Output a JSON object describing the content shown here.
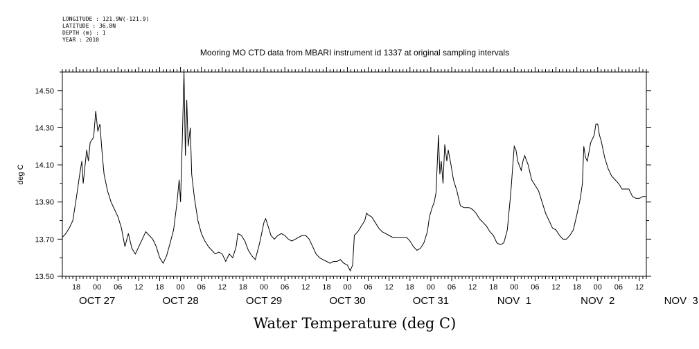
{
  "metadata": {
    "longitude": "LONGITUDE : 121.9W(-121.9)",
    "latitude": "LATITUDE : 36.8N",
    "depth": "DEPTH (m) : 1",
    "year": "YEAR : 2010"
  },
  "bottom_label": "Water Temperature (deg C)",
  "chart_data": {
    "type": "line",
    "title": "Mooring MO CTD data from MBARI instrument id 1337 at original sampling intervals",
    "xlabel": "",
    "ylabel": "deg C",
    "ylim": [
      13.5,
      14.6
    ],
    "xlim_hours": [
      14,
      182
    ],
    "grid": false,
    "y_ticks": [
      "13.50",
      "13.70",
      "13.90",
      "14.10",
      "14.30",
      "14.50"
    ],
    "x_hour_ticks": [
      "18",
      "00",
      "06",
      "12",
      "18",
      "00",
      "06",
      "12",
      "18",
      "00",
      "06",
      "12",
      "18",
      "00",
      "06",
      "12",
      "18",
      "00",
      "06",
      "12",
      "18",
      "00",
      "06",
      "12",
      "18",
      "00",
      "06",
      "12"
    ],
    "day_labels": [
      "OCT 27",
      "OCT 28",
      "OCT 29",
      "OCT 30",
      "OCT 31",
      "NOV  1",
      "NOV  2",
      "NOV  3"
    ],
    "series": [
      {
        "values": [
          [
            14.0,
            13.71
          ],
          [
            15.0,
            13.73
          ],
          [
            16.0,
            13.76
          ],
          [
            17.0,
            13.8
          ],
          [
            18.0,
            13.92
          ],
          [
            19.0,
            14.05
          ],
          [
            19.6,
            14.12
          ],
          [
            20.0,
            14.0
          ],
          [
            21.0,
            14.18
          ],
          [
            21.5,
            14.12
          ],
          [
            22.0,
            14.22
          ],
          [
            23.0,
            14.25
          ],
          [
            23.6,
            14.39
          ],
          [
            24.2,
            14.28
          ],
          [
            24.8,
            14.32
          ],
          [
            25.5,
            14.15
          ],
          [
            26.0,
            14.05
          ],
          [
            27.0,
            13.96
          ],
          [
            28.0,
            13.9
          ],
          [
            29.0,
            13.86
          ],
          [
            30.0,
            13.82
          ],
          [
            31.0,
            13.76
          ],
          [
            32.0,
            13.66
          ],
          [
            33.0,
            13.73
          ],
          [
            34.0,
            13.65
          ],
          [
            35.0,
            13.62
          ],
          [
            36.0,
            13.66
          ],
          [
            37.0,
            13.7
          ],
          [
            38.0,
            13.74
          ],
          [
            39.0,
            13.72
          ],
          [
            40.0,
            13.7
          ],
          [
            41.0,
            13.66
          ],
          [
            42.0,
            13.6
          ],
          [
            43.0,
            13.57
          ],
          [
            44.0,
            13.61
          ],
          [
            45.0,
            13.68
          ],
          [
            46.0,
            13.75
          ],
          [
            47.0,
            13.9
          ],
          [
            47.6,
            14.02
          ],
          [
            48.0,
            13.9
          ],
          [
            48.6,
            14.3
          ],
          [
            49.0,
            14.6
          ],
          [
            49.4,
            14.15
          ],
          [
            49.8,
            14.45
          ],
          [
            50.2,
            14.2
          ],
          [
            50.8,
            14.3
          ],
          [
            51.2,
            14.05
          ],
          [
            52.0,
            13.92
          ],
          [
            53.0,
            13.8
          ],
          [
            54.0,
            13.73
          ],
          [
            55.0,
            13.69
          ],
          [
            56.0,
            13.66
          ],
          [
            57.0,
            13.64
          ],
          [
            58.0,
            13.62
          ],
          [
            59.0,
            13.63
          ],
          [
            60.0,
            13.62
          ],
          [
            61.0,
            13.58
          ],
          [
            62.0,
            13.62
          ],
          [
            63.0,
            13.6
          ],
          [
            64.0,
            13.66
          ],
          [
            64.5,
            13.73
          ],
          [
            65.5,
            13.72
          ],
          [
            66.5,
            13.69
          ],
          [
            67.5,
            13.64
          ],
          [
            68.5,
            13.61
          ],
          [
            69.5,
            13.59
          ],
          [
            70.5,
            13.66
          ],
          [
            71.0,
            13.7
          ],
          [
            72.0,
            13.79
          ],
          [
            72.5,
            13.81
          ],
          [
            73.0,
            13.78
          ],
          [
            74.0,
            13.72
          ],
          [
            75.0,
            13.7
          ],
          [
            76.0,
            13.72
          ],
          [
            77.0,
            13.73
          ],
          [
            78.0,
            13.72
          ],
          [
            79.0,
            13.7
          ],
          [
            80.0,
            13.69
          ],
          [
            81.0,
            13.7
          ],
          [
            82.0,
            13.71
          ],
          [
            83.0,
            13.72
          ],
          [
            84.0,
            13.72
          ],
          [
            85.0,
            13.7
          ],
          [
            86.0,
            13.66
          ],
          [
            87.0,
            13.62
          ],
          [
            88.0,
            13.6
          ],
          [
            89.0,
            13.59
          ],
          [
            90.0,
            13.58
          ],
          [
            91.0,
            13.57
          ],
          [
            92.0,
            13.58
          ],
          [
            93.0,
            13.58
          ],
          [
            94.0,
            13.59
          ],
          [
            95.0,
            13.57
          ],
          [
            96.0,
            13.56
          ],
          [
            96.8,
            13.53
          ],
          [
            97.5,
            13.56
          ],
          [
            98.0,
            13.72
          ],
          [
            99.0,
            13.74
          ],
          [
            100.0,
            13.77
          ],
          [
            101.0,
            13.8
          ],
          [
            101.5,
            13.84
          ],
          [
            102.0,
            13.83
          ],
          [
            103.0,
            13.82
          ],
          [
            104.0,
            13.79
          ],
          [
            105.0,
            13.76
          ],
          [
            106.0,
            13.74
          ],
          [
            107.0,
            13.73
          ],
          [
            108.0,
            13.72
          ],
          [
            109.0,
            13.71
          ],
          [
            110.0,
            13.71
          ],
          [
            111.0,
            13.71
          ],
          [
            112.0,
            13.71
          ],
          [
            113.0,
            13.71
          ],
          [
            114.0,
            13.69
          ],
          [
            115.0,
            13.66
          ],
          [
            116.0,
            13.64
          ],
          [
            117.0,
            13.65
          ],
          [
            118.0,
            13.68
          ],
          [
            119.0,
            13.74
          ],
          [
            119.6,
            13.82
          ],
          [
            120.2,
            13.86
          ],
          [
            121.0,
            13.9
          ],
          [
            121.5,
            13.95
          ],
          [
            122.2,
            14.26
          ],
          [
            122.6,
            14.05
          ],
          [
            123.0,
            14.12
          ],
          [
            123.5,
            14.0
          ],
          [
            124.0,
            14.21
          ],
          [
            124.6,
            14.12
          ],
          [
            125.0,
            14.18
          ],
          [
            125.8,
            14.1
          ],
          [
            126.5,
            14.02
          ],
          [
            127.5,
            13.96
          ],
          [
            128.5,
            13.88
          ],
          [
            129.5,
            13.87
          ],
          [
            131.0,
            13.87
          ],
          [
            132.0,
            13.86
          ],
          [
            133.0,
            13.84
          ],
          [
            134.0,
            13.81
          ],
          [
            135.0,
            13.79
          ],
          [
            136.0,
            13.77
          ],
          [
            137.0,
            13.74
          ],
          [
            138.0,
            13.72
          ],
          [
            139.0,
            13.68
          ],
          [
            140.0,
            13.67
          ],
          [
            141.0,
            13.68
          ],
          [
            142.0,
            13.75
          ],
          [
            143.0,
            13.95
          ],
          [
            144.0,
            14.2
          ],
          [
            144.5,
            14.18
          ],
          [
            145.0,
            14.12
          ],
          [
            146.0,
            14.07
          ],
          [
            146.5,
            14.12
          ],
          [
            147.0,
            14.15
          ],
          [
            148.0,
            14.1
          ],
          [
            149.0,
            14.02
          ],
          [
            150.0,
            13.99
          ],
          [
            151.0,
            13.96
          ],
          [
            152.0,
            13.9
          ],
          [
            153.0,
            13.84
          ],
          [
            154.0,
            13.8
          ],
          [
            155.0,
            13.76
          ],
          [
            156.0,
            13.75
          ],
          [
            157.0,
            13.72
          ],
          [
            158.0,
            13.7
          ],
          [
            159.0,
            13.7
          ],
          [
            160.0,
            13.72
          ],
          [
            161.0,
            13.75
          ],
          [
            162.0,
            13.83
          ],
          [
            163.0,
            13.92
          ],
          [
            163.6,
            14.0
          ],
          [
            164.0,
            14.2
          ],
          [
            164.5,
            14.14
          ],
          [
            165.0,
            14.12
          ],
          [
            165.5,
            14.17
          ],
          [
            166.0,
            14.22
          ],
          [
            167.0,
            14.26
          ],
          [
            167.5,
            14.32
          ],
          [
            168.0,
            14.32
          ],
          [
            168.5,
            14.26
          ],
          [
            169.0,
            14.23
          ],
          [
            170.0,
            14.14
          ],
          [
            171.0,
            14.08
          ],
          [
            172.0,
            14.04
          ],
          [
            173.0,
            14.02
          ],
          [
            174.0,
            14.0
          ],
          [
            175.0,
            13.97
          ],
          [
            176.0,
            13.97
          ],
          [
            177.0,
            13.97
          ],
          [
            178.0,
            13.93
          ],
          [
            179.0,
            13.92
          ],
          [
            180.0,
            13.92
          ],
          [
            181.0,
            13.93
          ],
          [
            182.0,
            13.93
          ]
        ]
      }
    ]
  }
}
